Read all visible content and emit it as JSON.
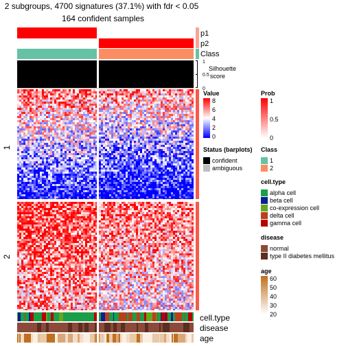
{
  "chart_data": {
    "type": "heatmap",
    "title_line1": "2 subgroups, 4700 signatures (37.1%) with fdr < 0.05",
    "title_line2": "164 confident samples",
    "column_groups": [
      {
        "label": "1",
        "samples": 69,
        "class_color": "#66C2A5"
      },
      {
        "label": "2",
        "samples": 95,
        "class_color": "#FC8D62"
      }
    ],
    "row_groups": [
      {
        "label": "1",
        "share": 0.5
      },
      {
        "label": "2",
        "share": 0.5
      }
    ],
    "top_annotations": {
      "p1": "p1",
      "p2": "p2",
      "class": "Class",
      "silhouette": "Silhouette\nscore",
      "silhouette_ticks": [
        "1",
        "0.5",
        "0"
      ]
    },
    "bottom_annotations": {
      "cell_type": "cell.type",
      "disease": "disease",
      "age": "age"
    },
    "legends": {
      "value": {
        "title": "Value",
        "ticks": [
          "8",
          "6",
          "4",
          "2",
          "0"
        ],
        "colors": [
          "#FF0000",
          "#FFFFFF",
          "#0000FF"
        ]
      },
      "prob": {
        "title": "Prob",
        "ticks": [
          "1",
          "0.5",
          "0"
        ],
        "colors": [
          "#FF0000",
          "#FFFFFF"
        ]
      },
      "status": {
        "title": "Status (barplots)",
        "items": [
          {
            "label": "confident",
            "color": "#000000"
          },
          {
            "label": "ambiguous",
            "color": "#BEBEBE"
          }
        ]
      },
      "class": {
        "title": "Class",
        "items": [
          {
            "label": "1",
            "color": "#66C2A5"
          },
          {
            "label": "2",
            "color": "#FC8D62"
          }
        ]
      },
      "cell_type": {
        "title": "cell.type",
        "items": [
          {
            "label": "alpha cell",
            "color": "#1B9E48"
          },
          {
            "label": "beta cell",
            "color": "#0A1E96"
          },
          {
            "label": "co-expression cell",
            "color": "#66A61E"
          },
          {
            "label": "delta cell",
            "color": "#B8401C"
          },
          {
            "label": "gamma cell",
            "color": "#B80000"
          }
        ]
      },
      "disease": {
        "title": "disease",
        "items": [
          {
            "label": "normal",
            "color": "#8B4A3A"
          },
          {
            "label": "type II diabetes mellitus",
            "color": "#5A2E20"
          }
        ]
      },
      "age": {
        "title": "age",
        "ticks": [
          "60",
          "50",
          "40",
          "30",
          "20"
        ],
        "colors": [
          "#C07020",
          "#FFFFFF"
        ]
      }
    }
  }
}
